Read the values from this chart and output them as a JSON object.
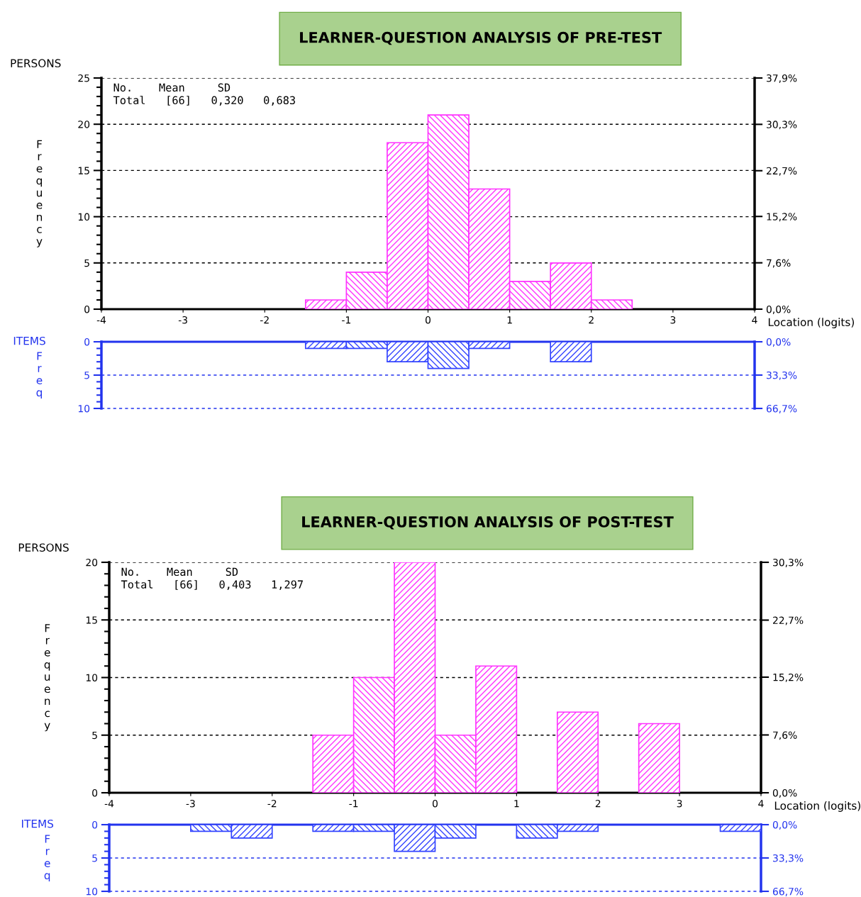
{
  "chart_data": [
    {
      "type": "histogram",
      "title": "LEARNER-QUESTION ANALYSIS OF PRE-TEST",
      "ylabel": "Frequency",
      "xlabel": "Location (logits)",
      "annotations": [
        "PERSONS",
        "No.    Mean     SD",
        "Total   [66]   0,320   0,683"
      ],
      "bins": [
        -4,
        -3.5,
        -3,
        -2.5,
        -2,
        -1.5,
        -1,
        -0.5,
        0,
        0.5,
        1,
        1.5,
        2,
        2.5,
        3,
        3.5,
        4
      ],
      "values": [
        0,
        0,
        0,
        0,
        0,
        1,
        4,
        18,
        21,
        13,
        3,
        5,
        1,
        0,
        0,
        0
      ],
      "color": "#ff33ff",
      "xlim": [
        -4,
        4
      ],
      "xticks": [
        -4,
        -3,
        -2,
        -1,
        0,
        1,
        2,
        3,
        4
      ],
      "ylim": [
        0,
        25
      ],
      "yticks": [
        0,
        5,
        10,
        15,
        20,
        25
      ],
      "y2lim": [
        0,
        37.9
      ],
      "y2ticks": [
        {
          "value": 0,
          "label": "0,0%"
        },
        {
          "value": 7.6,
          "label": "7,6%"
        },
        {
          "value": 15.2,
          "label": "15,2%"
        },
        {
          "value": 22.7,
          "label": "22,7%"
        },
        {
          "value": 30.3,
          "label": "30,3%"
        },
        {
          "value": 37.9,
          "label": "37,9%"
        }
      ],
      "grid": "y"
    },
    {
      "type": "histogram",
      "ylabel": "Freq",
      "annotations": [
        "ITEMS"
      ],
      "bins": [
        -4,
        -3.5,
        -3,
        -2.5,
        -2,
        -1.5,
        -1,
        -0.5,
        0,
        0.5,
        1,
        1.5,
        2,
        2.5,
        3,
        3.5,
        4
      ],
      "values": [
        0,
        0,
        0,
        0,
        0,
        1,
        1,
        3,
        4,
        1,
        0,
        3,
        0,
        0,
        0,
        0
      ],
      "color": "#3344ff",
      "xlim": [
        -4,
        4
      ],
      "ylim": [
        10,
        0
      ],
      "yticks": [
        0,
        5,
        10
      ],
      "y2lim": [
        66.7,
        0
      ],
      "y2ticks": [
        {
          "value": 0,
          "label": "0,0%"
        },
        {
          "value": 33.3,
          "label": "33,3%"
        },
        {
          "value": 66.7,
          "label": "66,7%"
        }
      ],
      "tick_labels": "y",
      "ref_lines": [
        {
          "axis": "y",
          "value": 5,
          "color": "#2233ee",
          "line_style": "dashed"
        },
        {
          "axis": "y",
          "value": 10,
          "color": "#2233ee",
          "line_style": "dashed"
        }
      ]
    },
    {
      "type": "histogram",
      "title": "LEARNER-QUESTION ANALYSIS OF POST-TEST",
      "ylabel": "Frequency",
      "xlabel": "Location (logits)",
      "annotations": [
        "PERSONS",
        "No.    Mean     SD",
        "Total   [66]   0,403   1,297"
      ],
      "bins": [
        -4,
        -3.5,
        -3,
        -2.5,
        -2,
        -1.5,
        -1,
        -0.5,
        0,
        0.5,
        1,
        1.5,
        2,
        2.5,
        3,
        3.5,
        4
      ],
      "values": [
        0,
        0,
        0,
        0,
        0,
        5,
        10,
        20,
        5,
        11,
        0,
        7,
        0,
        6,
        0,
        0
      ],
      "color": "#ff33ff",
      "xlim": [
        -4,
        4
      ],
      "xticks": [
        -4,
        -3,
        -2,
        -1,
        0,
        1,
        2,
        3,
        4
      ],
      "ylim": [
        0,
        20
      ],
      "yticks": [
        0,
        5,
        10,
        15,
        20
      ],
      "y2lim": [
        0,
        30.3
      ],
      "y2ticks": [
        {
          "value": 0,
          "label": "0,0%"
        },
        {
          "value": 7.6,
          "label": "7,6%"
        },
        {
          "value": 15.2,
          "label": "15,2%"
        },
        {
          "value": 22.7,
          "label": "22,7%"
        },
        {
          "value": 30.3,
          "label": "30,3%"
        }
      ],
      "grid": "y"
    },
    {
      "type": "histogram",
      "ylabel": "Freq",
      "annotations": [
        "ITEMS"
      ],
      "bins": [
        -4,
        -3.5,
        -3,
        -2.5,
        -2,
        -1.5,
        -1,
        -0.5,
        0,
        0.5,
        1,
        1.5,
        2,
        2.5,
        3,
        3.5,
        4
      ],
      "values": [
        0,
        0,
        1,
        2,
        0,
        1,
        1,
        4,
        2,
        0,
        2,
        1,
        0,
        0,
        0,
        1
      ],
      "color": "#3344ff",
      "xlim": [
        -4,
        4
      ],
      "ylim": [
        10,
        0
      ],
      "yticks": [
        0,
        5,
        10
      ],
      "y2lim": [
        66.7,
        0
      ],
      "y2ticks": [
        {
          "value": 0,
          "label": "0,0%"
        },
        {
          "value": 33.3,
          "label": "33,3%"
        },
        {
          "value": 66.7,
          "label": "66,7%"
        }
      ],
      "tick_labels": "y",
      "ref_lines": [
        {
          "axis": "y",
          "value": 5,
          "color": "#2233ee",
          "line_style": "dashed"
        },
        {
          "axis": "y",
          "value": 10,
          "color": "#2233ee",
          "line_style": "dashed"
        }
      ]
    }
  ]
}
